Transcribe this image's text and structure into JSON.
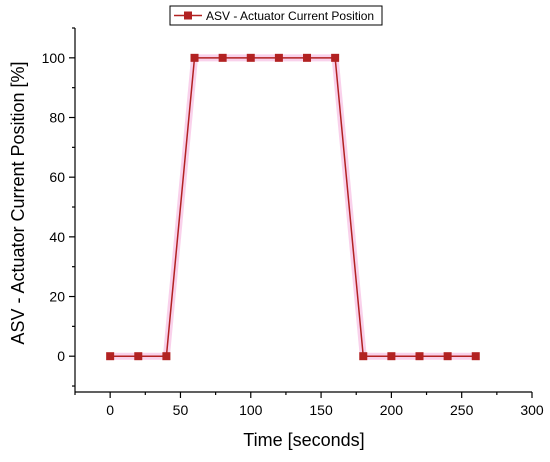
{
  "chart_data": {
    "type": "line",
    "title": "",
    "xlabel": "Time [seconds]",
    "ylabel": "ASV - Actuator Current Position [%]",
    "xlim": [
      -25,
      300
    ],
    "ylim": [
      -12,
      110
    ],
    "xticks": [
      0,
      50,
      100,
      150,
      200,
      250,
      300
    ],
    "yticks": [
      0,
      20,
      40,
      60,
      80,
      100
    ],
    "grid": false,
    "legend": "top-center",
    "series": [
      {
        "name": "ASV - Actuator Current Position",
        "color": "#b22222",
        "marker": "square",
        "x": [
          0,
          20,
          40,
          60,
          80,
          100,
          120,
          140,
          160,
          180,
          200,
          220,
          240,
          260
        ],
        "y": [
          0,
          0,
          0,
          100,
          100,
          100,
          100,
          100,
          100,
          0,
          0,
          0,
          0,
          0
        ]
      }
    ]
  }
}
